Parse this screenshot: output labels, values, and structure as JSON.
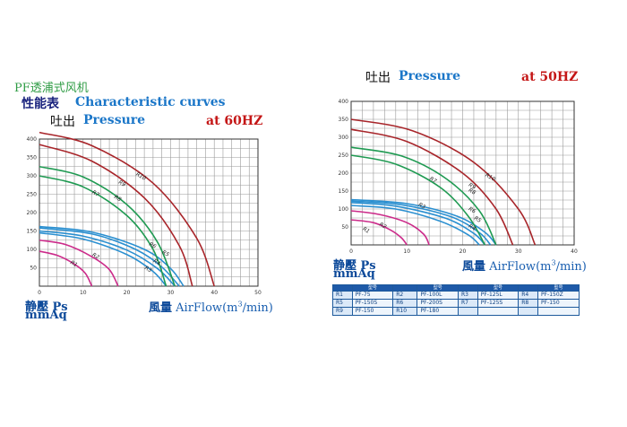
{
  "left_header": {
    "brand": "PF透浦式风机",
    "title_cn": "性能表",
    "title_en": "Characteristic curves",
    "pressure_cn": "吐出",
    "pressure_en": "Pressure",
    "freq": "at 60HZ"
  },
  "right_header": {
    "pressure_cn": "吐出",
    "pressure_en": "Pressure",
    "freq": "at 50HZ"
  },
  "left_axes": {
    "y_cn": "静壓 Ps",
    "y_unit": "mmAq",
    "x_cn": "風量",
    "x_en": "AirFlow",
    "x_unit": "(m",
    "x_unit_sup": "3",
    "x_unit_end": "/min)"
  },
  "right_axes": {
    "y_cn": "静壓 Ps",
    "y_unit": "mmAq",
    "x_cn": "風量",
    "x_en": "AirFlow",
    "x_unit": "(m",
    "x_unit_sup": "3",
    "x_unit_end": "/min)"
  },
  "legend": {
    "header": [
      "",
      "型号",
      "",
      "型号",
      "",
      "型号",
      "",
      "型号"
    ],
    "rows": [
      [
        "R1",
        "PF-75",
        "R2",
        "PF-100L",
        "R3",
        "PF-125L",
        "R4",
        "PF-150Z"
      ],
      [
        "R5",
        "PF-150S",
        "R6",
        "PF-200S",
        "R7",
        "PF-125S",
        "R8",
        "PF-150"
      ],
      [
        "R9",
        "PF-150",
        "R10",
        "PF-180",
        "",
        "",
        "",
        ""
      ]
    ]
  },
  "chart_data": [
    {
      "type": "line",
      "title": "at 60HZ",
      "xlabel": "風量 AirFlow(m3/min)",
      "ylabel": "静壓 Ps mmAq",
      "xlim": [
        0,
        50
      ],
      "ylim": [
        0,
        400
      ],
      "x_ticks": [
        0,
        10,
        20,
        30,
        40,
        50
      ],
      "y_ticks": [
        50,
        100,
        150,
        200,
        250,
        300,
        350,
        400
      ],
      "grid": true,
      "colors": {
        "R1": "#cc2b8a",
        "R2": "#cc2b8a",
        "R3": "#2a8fd0",
        "R4": "#2a8fd0",
        "R5": "#2a8fd0",
        "R6": "#2a8fd0",
        "R7": "#1f9a52",
        "R8": "#1f9a52",
        "R9": "#a8252a",
        "R10": "#a8252a"
      },
      "series": [
        {
          "name": "R1",
          "values": [
            {
              "x": 0,
              "y": 95
            },
            {
              "x": 4,
              "y": 84
            },
            {
              "x": 8,
              "y": 60
            },
            {
              "x": 10.5,
              "y": 35
            },
            {
              "x": 12,
              "y": 0
            }
          ]
        },
        {
          "name": "R2",
          "values": [
            {
              "x": 0,
              "y": 125
            },
            {
              "x": 6,
              "y": 113
            },
            {
              "x": 12,
              "y": 80
            },
            {
              "x": 16,
              "y": 45
            },
            {
              "x": 18,
              "y": 0
            }
          ]
        },
        {
          "name": "R3",
          "values": [
            {
              "x": 0,
              "y": 145
            },
            {
              "x": 10,
              "y": 128
            },
            {
              "x": 20,
              "y": 86
            },
            {
              "x": 26,
              "y": 40
            },
            {
              "x": 29,
              "y": 0
            }
          ]
        },
        {
          "name": "R4",
          "values": [
            {
              "x": 0,
              "y": 150
            },
            {
              "x": 10,
              "y": 136
            },
            {
              "x": 20,
              "y": 98
            },
            {
              "x": 27,
              "y": 48
            },
            {
              "x": 31,
              "y": 0
            }
          ]
        },
        {
          "name": "R5",
          "values": [
            {
              "x": 0,
              "y": 158
            },
            {
              "x": 12,
              "y": 142
            },
            {
              "x": 22,
              "y": 100
            },
            {
              "x": 28,
              "y": 52
            },
            {
              "x": 32,
              "y": 0
            }
          ]
        },
        {
          "name": "R6",
          "values": [
            {
              "x": 0,
              "y": 162
            },
            {
              "x": 12,
              "y": 147
            },
            {
              "x": 24,
              "y": 100
            },
            {
              "x": 30,
              "y": 48
            },
            {
              "x": 33,
              "y": 0
            }
          ]
        },
        {
          "name": "R7",
          "values": [
            {
              "x": 0,
              "y": 300
            },
            {
              "x": 10,
              "y": 270
            },
            {
              "x": 20,
              "y": 192
            },
            {
              "x": 26,
              "y": 100
            },
            {
              "x": 29,
              "y": 0
            }
          ]
        },
        {
          "name": "R8",
          "values": [
            {
              "x": 0,
              "y": 325
            },
            {
              "x": 10,
              "y": 297
            },
            {
              "x": 20,
              "y": 222
            },
            {
              "x": 27,
              "y": 120
            },
            {
              "x": 31,
              "y": 0
            }
          ]
        },
        {
          "name": "R9",
          "values": [
            {
              "x": 0,
              "y": 385
            },
            {
              "x": 12,
              "y": 340
            },
            {
              "x": 24,
              "y": 240
            },
            {
              "x": 32,
              "y": 110
            },
            {
              "x": 35,
              "y": 0
            }
          ]
        },
        {
          "name": "R10",
          "values": [
            {
              "x": 0,
              "y": 418
            },
            {
              "x": 12,
              "y": 382
            },
            {
              "x": 26,
              "y": 280
            },
            {
              "x": 36,
              "y": 130
            },
            {
              "x": 40,
              "y": 0
            }
          ]
        }
      ],
      "curve_labels": [
        {
          "text": "R1",
          "x": 7,
          "y": 62
        },
        {
          "text": "R2",
          "x": 12,
          "y": 83
        },
        {
          "text": "R3",
          "x": 24,
          "y": 47
        },
        {
          "text": "R4",
          "x": 26,
          "y": 66
        },
        {
          "text": "R5",
          "x": 28,
          "y": 90
        },
        {
          "text": "R6",
          "x": 25,
          "y": 112
        },
        {
          "text": "R7",
          "x": 12,
          "y": 253
        },
        {
          "text": "R8",
          "x": 17,
          "y": 240
        },
        {
          "text": "R9",
          "x": 18,
          "y": 280
        },
        {
          "text": "R10",
          "x": 22,
          "y": 302
        }
      ]
    },
    {
      "type": "line",
      "title": "at 50HZ",
      "xlabel": "風量 AirFlow(m3/min)",
      "ylabel": "静壓 Ps mmAq",
      "xlim": [
        0,
        40
      ],
      "ylim": [
        0,
        400
      ],
      "x_ticks": [
        0,
        10,
        20,
        30,
        40
      ],
      "y_ticks": [
        50,
        100,
        150,
        200,
        250,
        300,
        350,
        400
      ],
      "grid": true,
      "colors": {
        "R1": "#cc2b8a",
        "R2": "#cc2b8a",
        "R3": "#2a8fd0",
        "R4": "#2a8fd0",
        "R5": "#2a8fd0",
        "R6": "#2a8fd0",
        "R7": "#1f9a52",
        "R8": "#1f9a52",
        "R9": "#a8252a",
        "R10": "#a8252a"
      },
      "series": [
        {
          "name": "R1",
          "values": [
            {
              "x": 0,
              "y": 70
            },
            {
              "x": 4,
              "y": 62
            },
            {
              "x": 7,
              "y": 42
            },
            {
              "x": 9,
              "y": 20
            },
            {
              "x": 10,
              "y": 0
            }
          ]
        },
        {
          "name": "R2",
          "values": [
            {
              "x": 0,
              "y": 95
            },
            {
              "x": 5,
              "y": 85
            },
            {
              "x": 10,
              "y": 62
            },
            {
              "x": 13,
              "y": 30
            },
            {
              "x": 14,
              "y": 0
            }
          ]
        },
        {
          "name": "R3",
          "values": [
            {
              "x": 0,
              "y": 110
            },
            {
              "x": 8,
              "y": 100
            },
            {
              "x": 16,
              "y": 66
            },
            {
              "x": 21,
              "y": 28
            },
            {
              "x": 23,
              "y": 0
            }
          ]
        },
        {
          "name": "R4",
          "values": [
            {
              "x": 0,
              "y": 118
            },
            {
              "x": 8,
              "y": 108
            },
            {
              "x": 17,
              "y": 74
            },
            {
              "x": 22,
              "y": 32
            },
            {
              "x": 24,
              "y": 0
            }
          ]
        },
        {
          "name": "R5",
          "values": [
            {
              "x": 0,
              "y": 122
            },
            {
              "x": 9,
              "y": 112
            },
            {
              "x": 18,
              "y": 78
            },
            {
              "x": 23,
              "y": 34
            },
            {
              "x": 25,
              "y": 0
            }
          ]
        },
        {
          "name": "R6",
          "values": [
            {
              "x": 0,
              "y": 126
            },
            {
              "x": 10,
              "y": 115
            },
            {
              "x": 19,
              "y": 80
            },
            {
              "x": 24,
              "y": 35
            },
            {
              "x": 26,
              "y": 0
            }
          ]
        },
        {
          "name": "R7",
          "values": [
            {
              "x": 0,
              "y": 250
            },
            {
              "x": 8,
              "y": 225
            },
            {
              "x": 16,
              "y": 160
            },
            {
              "x": 21,
              "y": 80
            },
            {
              "x": 24,
              "y": 0
            }
          ]
        },
        {
          "name": "R8",
          "values": [
            {
              "x": 0,
              "y": 272
            },
            {
              "x": 9,
              "y": 248
            },
            {
              "x": 17,
              "y": 185
            },
            {
              "x": 23,
              "y": 95
            },
            {
              "x": 26,
              "y": 0
            }
          ]
        },
        {
          "name": "R9",
          "values": [
            {
              "x": 0,
              "y": 322
            },
            {
              "x": 10,
              "y": 288
            },
            {
              "x": 20,
              "y": 200
            },
            {
              "x": 26,
              "y": 100
            },
            {
              "x": 29,
              "y": 0
            }
          ]
        },
        {
          "name": "R10",
          "values": [
            {
              "x": 0,
              "y": 350
            },
            {
              "x": 11,
              "y": 318
            },
            {
              "x": 22,
              "y": 230
            },
            {
              "x": 30,
              "y": 100
            },
            {
              "x": 33,
              "y": 0
            }
          ]
        }
      ],
      "curve_labels": [
        {
          "text": "R1",
          "x": 2,
          "y": 42
        },
        {
          "text": "R2",
          "x": 5,
          "y": 55
        },
        {
          "text": "R3",
          "x": 12,
          "y": 110
        },
        {
          "text": "R4",
          "x": 21,
          "y": 50
        },
        {
          "text": "R5",
          "x": 22,
          "y": 72
        },
        {
          "text": "R6",
          "x": 21,
          "y": 98
        },
        {
          "text": "R7",
          "x": 14,
          "y": 182
        },
        {
          "text": "R8",
          "x": 21,
          "y": 150
        },
        {
          "text": "R9",
          "x": 21,
          "y": 165
        },
        {
          "text": "R10",
          "x": 24,
          "y": 192
        }
      ]
    }
  ]
}
